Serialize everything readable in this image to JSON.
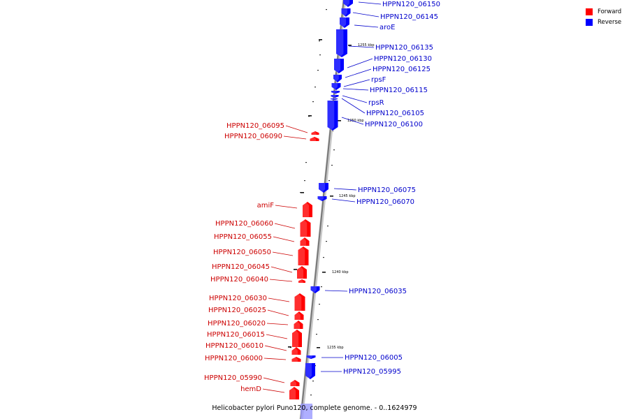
{
  "caption": "Helicobacter pylori Puno120, complete genome. - 0..1624979",
  "legend": [
    {
      "label": "Forward",
      "color": "#ff0000"
    },
    {
      "label": "Reverse",
      "color": "#0000ff"
    }
  ],
  "colors": {
    "forward": "#ff0000",
    "reverse": "#0000ff",
    "label_forward": "#cc0000",
    "label_reverse": "#0000cc"
  },
  "scale_ticks": [
    "1255 kbp",
    "1250 kbp",
    "1245 kbp",
    "1240 kbp",
    "1235 kbp"
  ],
  "genes": [
    {
      "name": "HPPN120_06150",
      "strand": "reverse"
    },
    {
      "name": "HPPN120_06145",
      "strand": "reverse"
    },
    {
      "name": "aroE",
      "strand": "reverse"
    },
    {
      "name": "HPPN120_06135",
      "strand": "reverse"
    },
    {
      "name": "HPPN120_06130",
      "strand": "reverse"
    },
    {
      "name": "HPPN120_06125",
      "strand": "reverse"
    },
    {
      "name": "rpsF",
      "strand": "reverse"
    },
    {
      "name": "HPPN120_06115",
      "strand": "reverse"
    },
    {
      "name": "rpsR",
      "strand": "reverse"
    },
    {
      "name": "HPPN120_06105",
      "strand": "reverse"
    },
    {
      "name": "HPPN120_06100",
      "strand": "reverse"
    },
    {
      "name": "HPPN120_06095",
      "strand": "forward"
    },
    {
      "name": "HPPN120_06090",
      "strand": "forward"
    },
    {
      "name": "HPPN120_06075",
      "strand": "reverse"
    },
    {
      "name": "HPPN120_06070",
      "strand": "reverse"
    },
    {
      "name": "amiF",
      "strand": "forward"
    },
    {
      "name": "HPPN120_06060",
      "strand": "forward"
    },
    {
      "name": "HPPN120_06055",
      "strand": "forward"
    },
    {
      "name": "HPPN120_06050",
      "strand": "forward"
    },
    {
      "name": "HPPN120_06045",
      "strand": "forward"
    },
    {
      "name": "HPPN120_06040",
      "strand": "forward"
    },
    {
      "name": "HPPN120_06035",
      "strand": "reverse"
    },
    {
      "name": "HPPN120_06030",
      "strand": "forward"
    },
    {
      "name": "HPPN120_06025",
      "strand": "forward"
    },
    {
      "name": "HPPN120_06020",
      "strand": "forward"
    },
    {
      "name": "HPPN120_06015",
      "strand": "forward"
    },
    {
      "name": "HPPN120_06010",
      "strand": "forward"
    },
    {
      "name": "HPPN120_06005",
      "strand": "reverse"
    },
    {
      "name": "HPPN120_06000",
      "strand": "forward"
    },
    {
      "name": "HPPN120_05995",
      "strand": "reverse"
    },
    {
      "name": "HPPN120_05990",
      "strand": "forward"
    },
    {
      "name": "hemD",
      "strand": "forward"
    }
  ]
}
